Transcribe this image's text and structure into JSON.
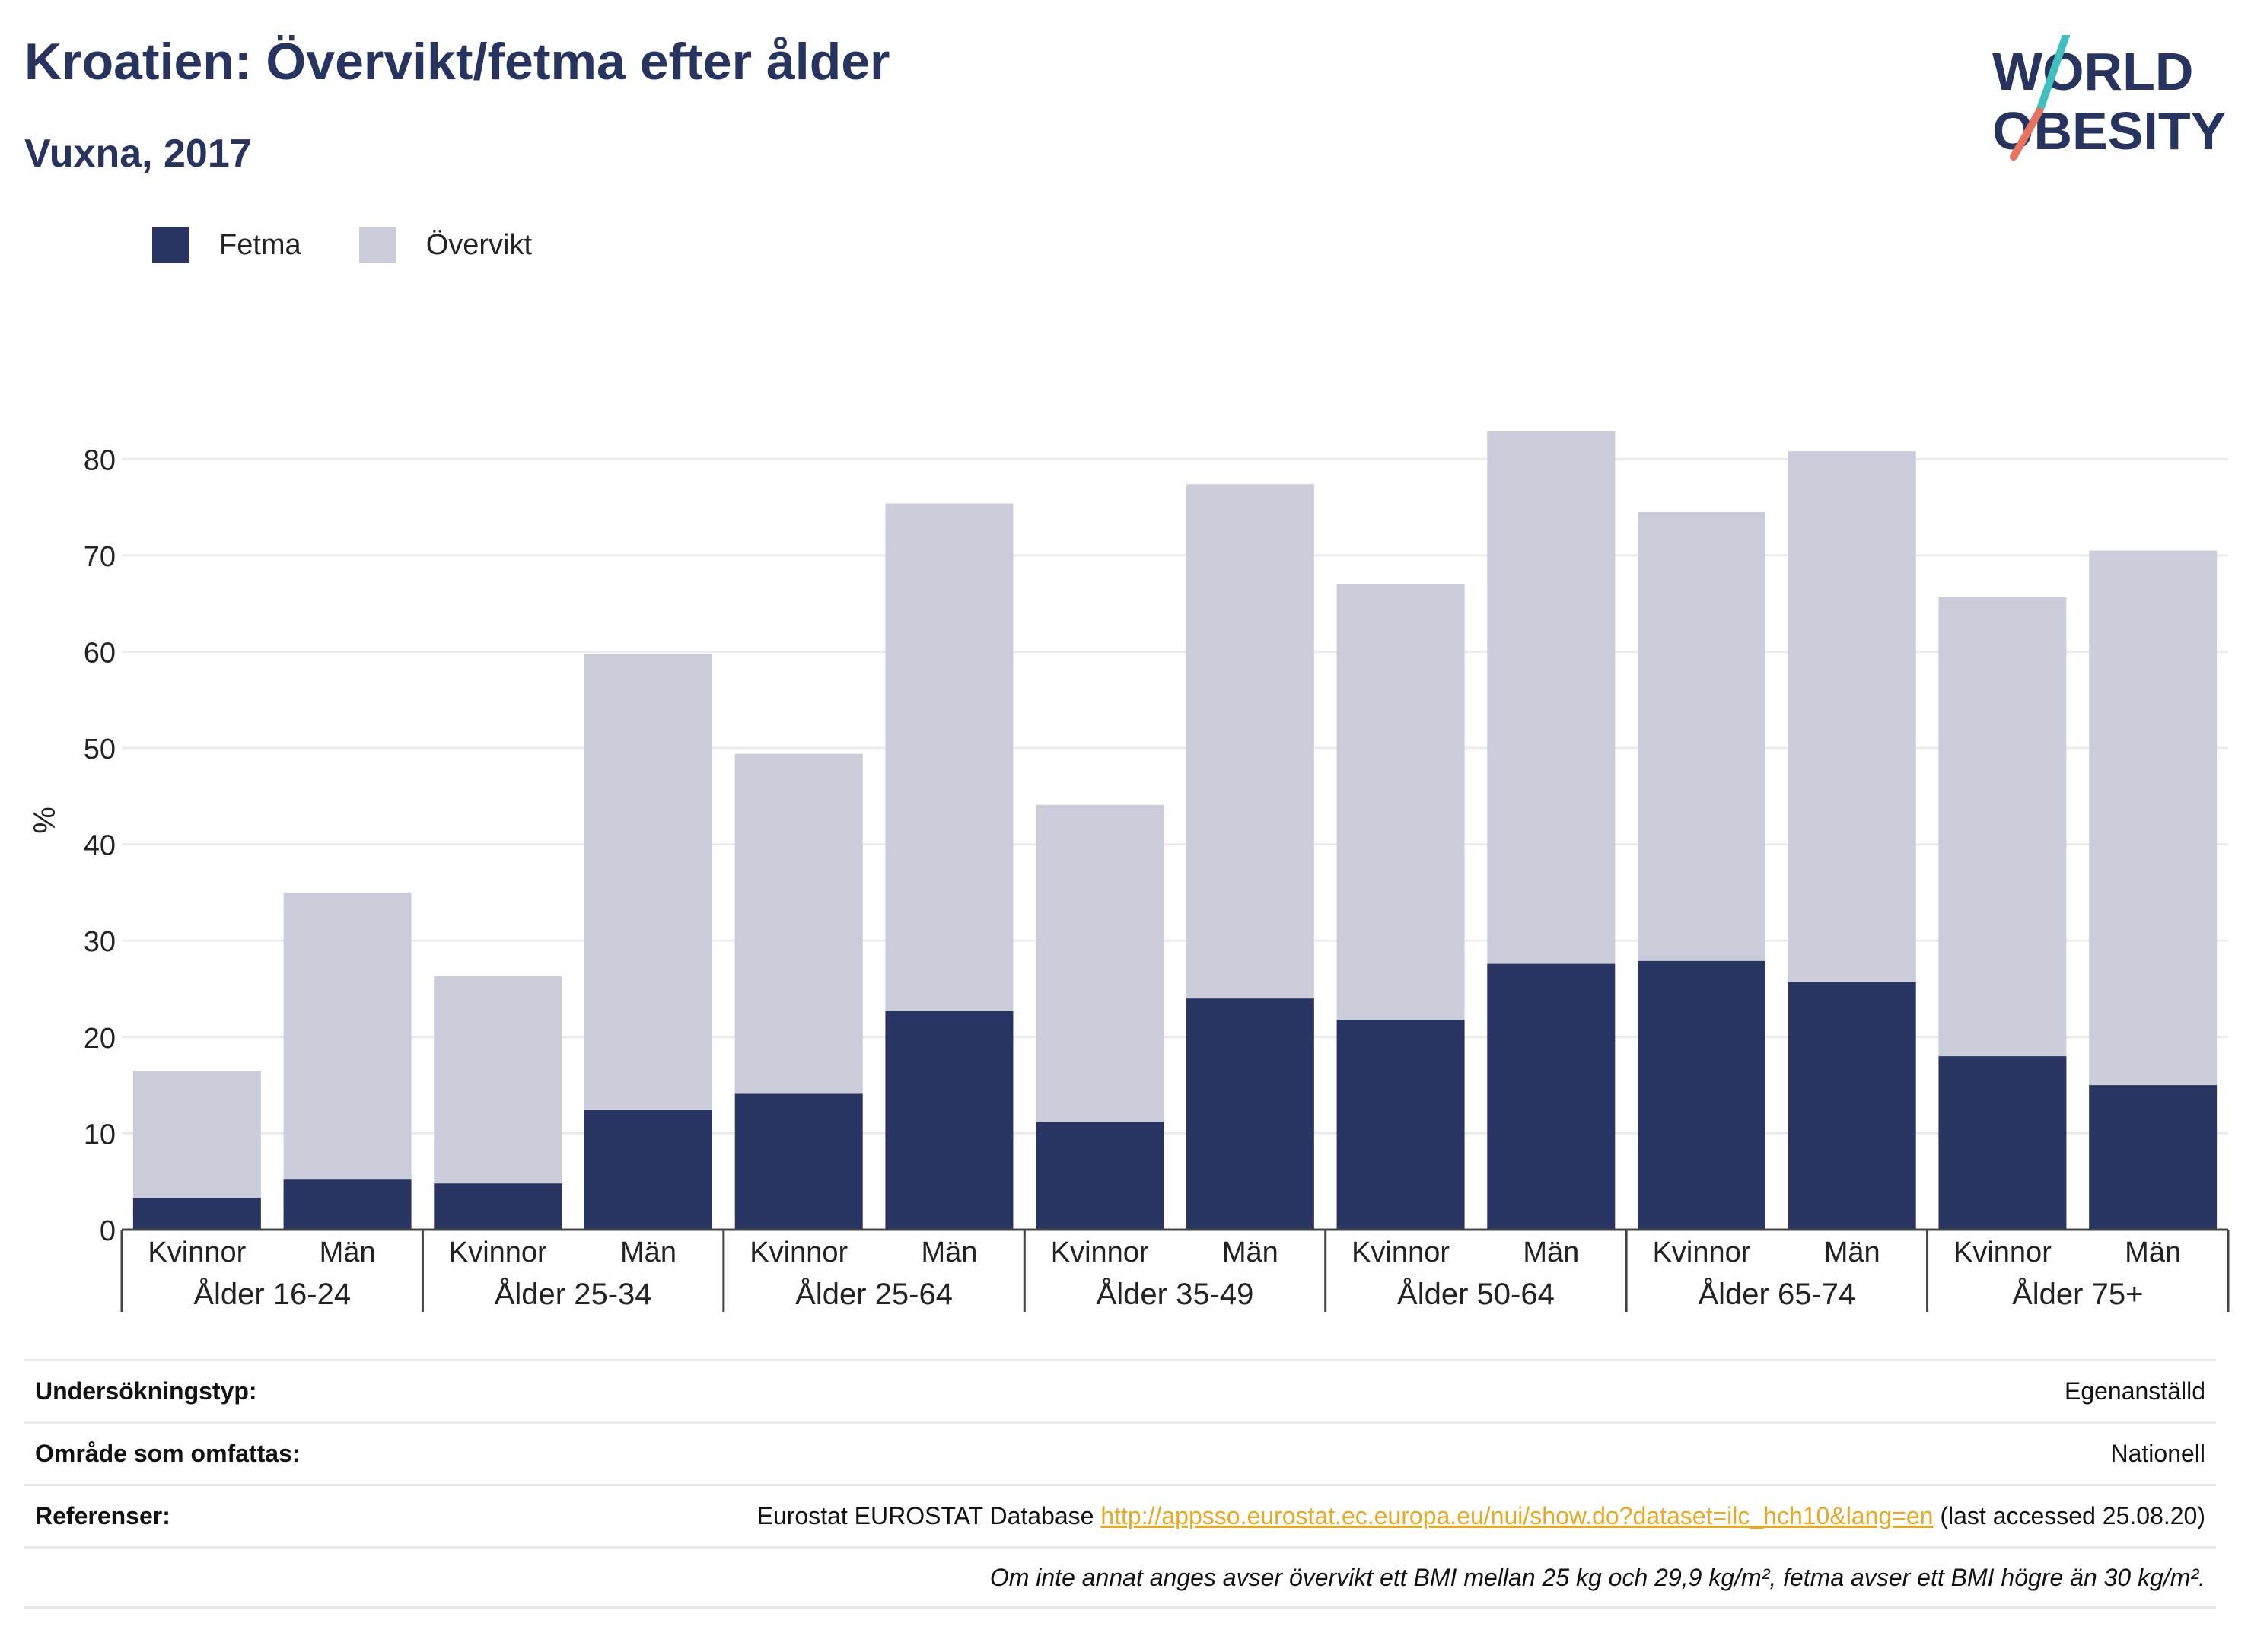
{
  "header": {
    "title": "Kroatien: Övervikt/fetma efter ålder",
    "subtitle": "Vuxna, 2017"
  },
  "logo": {
    "line1": "WORLD",
    "line2": "OBESITY"
  },
  "colors": {
    "fetma": "#283563",
    "overvikt": "#cacdd9",
    "title": "#283460",
    "link": "#e8a825",
    "logo_teal": "#3fbfbf",
    "logo_coral": "#e8735f"
  },
  "chart_data": {
    "type": "bar",
    "stacked": true,
    "ylabel": "%",
    "ylim": [
      0,
      85
    ],
    "yticks": [
      0,
      10,
      20,
      30,
      40,
      50,
      60,
      70,
      80
    ],
    "grid": true,
    "legend_position": "top-left",
    "groups": [
      "Ålder 16-24",
      "Ålder 25-34",
      "Ålder 25-64",
      "Ålder 35-49",
      "Ålder 50-64",
      "Ålder 65-74",
      "Ålder 75+"
    ],
    "subcategories": [
      "Kvinnor",
      "Män"
    ],
    "categories": [
      "Kvinnor",
      "Män",
      "Kvinnor",
      "Män",
      "Kvinnor",
      "Män",
      "Kvinnor",
      "Män",
      "Kvinnor",
      "Män",
      "Kvinnor",
      "Män",
      "Kvinnor",
      "Män"
    ],
    "series": [
      {
        "name": "Fetma",
        "values": [
          3.3,
          5.2,
          4.8,
          12.4,
          14.1,
          22.7,
          11.2,
          24.0,
          21.8,
          27.6,
          27.9,
          25.7,
          18.0,
          15.0
        ]
      },
      {
        "name": "Övervikt",
        "values": [
          13.2,
          29.8,
          21.5,
          47.4,
          35.3,
          52.7,
          32.9,
          53.4,
          45.2,
          55.3,
          46.6,
          55.1,
          47.7,
          55.5
        ]
      }
    ]
  },
  "info": {
    "survey_label": "Undersökningstyp:",
    "survey_value": "Egenanställd",
    "area_label": "Område som omfattas:",
    "area_value": "Nationell",
    "ref_label": "Referenser:",
    "ref_prefix": "Eurostat EUROSTAT Database ",
    "ref_link": "http://appsso.eurostat.ec.europa.eu/nui/show.do?dataset=ilc_hch10&lang=en",
    "ref_suffix": " (last accessed 25.08.20)",
    "note": "Om inte annat anges avser övervikt ett BMI mellan 25 kg och 29,9 kg/m², fetma avser ett BMI högre än 30 kg/m²."
  }
}
